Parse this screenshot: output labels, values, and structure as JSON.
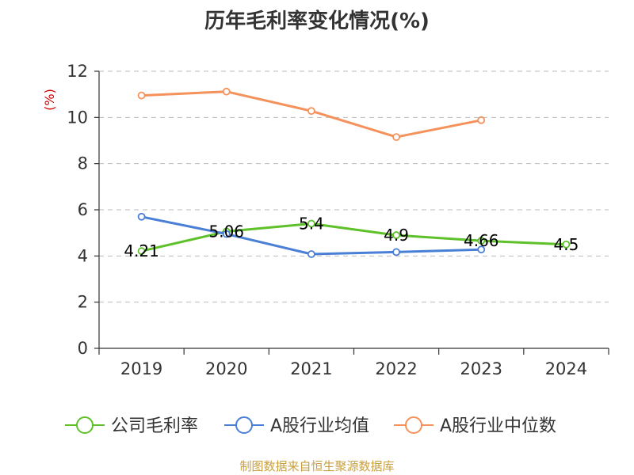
{
  "chart_data": {
    "type": "line",
    "title": "历年毛利率变化情况(%)",
    "ylabel": "(%)",
    "xlabel": "",
    "categories": [
      "2019",
      "2020",
      "2021",
      "2022",
      "2023",
      "2024"
    ],
    "ylim": [
      0,
      12
    ],
    "yticks": [
      "0",
      "2",
      "4",
      "6",
      "8",
      "10",
      "12"
    ],
    "grid": true,
    "legend_position": "bottom",
    "series": [
      {
        "name": "公司毛利率",
        "color": "#5ec12a",
        "values": [
          4.21,
          5.06,
          5.4,
          4.9,
          4.66,
          4.5
        ],
        "labels": [
          "4.21",
          "5.06",
          "5.4",
          "4.9",
          "4.66",
          "4.5"
        ]
      },
      {
        "name": "A股行业均值",
        "color": "#4a7fd6",
        "values": [
          5.7,
          4.95,
          4.08,
          4.17,
          4.28,
          null
        ]
      },
      {
        "name": "A股行业中位数",
        "color": "#f5915a",
        "values": [
          10.95,
          11.12,
          10.28,
          9.15,
          9.88,
          null
        ]
      }
    ]
  },
  "source": "制图数据来自恒生聚源数据库"
}
